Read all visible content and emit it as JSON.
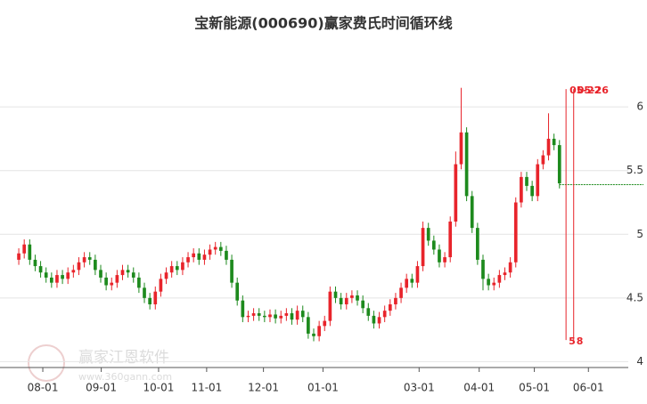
{
  "chart_data": {
    "type": "candlestick",
    "title": "宝新能源(000690)赢家费氏时间循环线",
    "watermark": "赢家江恩软件",
    "watermark_url": "www.360gann.com",
    "up_color": "#e8242b",
    "down_color": "#1d8a1d",
    "ylim": [
      3.94,
      6.56
    ],
    "yticks": [
      4,
      4.5,
      5,
      5.5,
      6
    ],
    "grid": true,
    "xlim": [
      -0.5,
      111.6
    ],
    "xticks": [
      {
        "value": 4.4,
        "label": "08-01"
      },
      {
        "value": 15.1,
        "label": "09-01"
      },
      {
        "value": 25.6,
        "label": "10-01"
      },
      {
        "value": 34.4,
        "label": "11-01"
      },
      {
        "value": 44.8,
        "label": "12-01"
      },
      {
        "value": 55.7,
        "label": "01-01"
      },
      {
        "value": 73.3,
        "label": "03-01"
      },
      {
        "value": 84.3,
        "label": "04-01"
      },
      {
        "value": 94.4,
        "label": "05-01"
      },
      {
        "value": 104.3,
        "label": "06-01"
      }
    ],
    "open": [
      4.8,
      4.85,
      4.92,
      4.8,
      4.75,
      4.7,
      4.66,
      4.62,
      4.68,
      4.65,
      4.7,
      4.72,
      4.78,
      4.82,
      4.8,
      4.72,
      4.66,
      4.6,
      4.62,
      4.68,
      4.72,
      4.7,
      4.66,
      4.58,
      4.5,
      4.45,
      4.55,
      4.65,
      4.7,
      4.75,
      4.72,
      4.78,
      4.82,
      4.85,
      4.8,
      4.84,
      4.88,
      4.9,
      4.87,
      4.8,
      4.62,
      4.48,
      4.35,
      4.36,
      4.38,
      4.36,
      4.35,
      4.37,
      4.34,
      4.36,
      4.38,
      4.33,
      4.4,
      4.35,
      4.22,
      4.2,
      4.28,
      4.32,
      4.55,
      4.5,
      4.45,
      4.5,
      4.52,
      4.48,
      4.42,
      4.36,
      4.3,
      4.35,
      4.4,
      4.45,
      4.5,
      4.58,
      4.65,
      4.62,
      4.75,
      5.05,
      4.95,
      4.88,
      4.78,
      4.82,
      5.1,
      5.55,
      5.8,
      5.3,
      5.05,
      4.8,
      4.65,
      4.6,
      4.62,
      4.68,
      4.7,
      4.78,
      5.25,
      5.45,
      5.38,
      5.3,
      5.55,
      5.62,
      5.75,
      5.7
    ],
    "close": [
      4.85,
      4.92,
      4.8,
      4.75,
      4.7,
      4.66,
      4.62,
      4.68,
      4.65,
      4.7,
      4.72,
      4.78,
      4.82,
      4.8,
      4.72,
      4.66,
      4.6,
      4.62,
      4.68,
      4.72,
      4.7,
      4.66,
      4.58,
      4.5,
      4.45,
      4.55,
      4.65,
      4.7,
      4.75,
      4.72,
      4.78,
      4.82,
      4.85,
      4.8,
      4.84,
      4.88,
      4.9,
      4.87,
      4.8,
      4.62,
      4.48,
      4.35,
      4.36,
      4.38,
      4.36,
      4.35,
      4.37,
      4.34,
      4.36,
      4.38,
      4.33,
      4.4,
      4.35,
      4.22,
      4.2,
      4.28,
      4.32,
      4.55,
      4.5,
      4.45,
      4.5,
      4.52,
      4.48,
      4.42,
      4.36,
      4.3,
      4.35,
      4.4,
      4.45,
      4.5,
      4.58,
      4.65,
      4.62,
      4.75,
      5.05,
      4.95,
      4.88,
      4.78,
      4.82,
      5.1,
      5.55,
      5.8,
      5.3,
      5.05,
      4.8,
      4.65,
      4.6,
      4.62,
      4.68,
      4.7,
      4.78,
      5.25,
      5.45,
      5.38,
      5.3,
      5.55,
      5.62,
      5.75,
      5.7,
      5.4
    ],
    "high": [
      4.89,
      4.96,
      4.96,
      4.84,
      4.79,
      4.74,
      4.7,
      4.72,
      4.72,
      4.74,
      4.76,
      4.82,
      4.86,
      4.86,
      4.84,
      4.76,
      4.7,
      4.66,
      4.72,
      4.76,
      4.76,
      4.74,
      4.7,
      4.62,
      4.54,
      4.59,
      4.69,
      4.74,
      4.79,
      4.79,
      4.82,
      4.86,
      4.89,
      4.89,
      4.88,
      4.92,
      4.94,
      4.94,
      4.91,
      4.84,
      4.66,
      4.52,
      4.4,
      4.42,
      4.42,
      4.4,
      4.41,
      4.41,
      4.4,
      4.42,
      4.42,
      4.44,
      4.44,
      4.39,
      4.26,
      4.32,
      4.36,
      4.59,
      4.59,
      4.54,
      4.54,
      4.56,
      4.56,
      4.52,
      4.46,
      4.4,
      4.39,
      4.44,
      4.49,
      4.54,
      4.62,
      4.69,
      4.69,
      4.79,
      5.1,
      5.09,
      4.99,
      4.92,
      4.86,
      5.14,
      5.65,
      6.15,
      5.84,
      5.34,
      5.09,
      4.84,
      4.69,
      4.66,
      4.72,
      4.74,
      4.82,
      5.29,
      5.49,
      5.49,
      5.42,
      5.59,
      5.66,
      5.95,
      5.79,
      5.74
    ],
    "low": [
      4.76,
      4.81,
      4.76,
      4.71,
      4.66,
      4.62,
      4.58,
      4.58,
      4.61,
      4.61,
      4.66,
      4.68,
      4.74,
      4.76,
      4.68,
      4.62,
      4.56,
      4.56,
      4.58,
      4.64,
      4.66,
      4.62,
      4.54,
      4.46,
      4.41,
      4.41,
      4.51,
      4.61,
      4.66,
      4.68,
      4.68,
      4.74,
      4.78,
      4.76,
      4.76,
      4.8,
      4.84,
      4.83,
      4.76,
      4.58,
      4.44,
      4.31,
      4.31,
      4.32,
      4.32,
      4.31,
      4.31,
      4.3,
      4.3,
      4.32,
      4.29,
      4.29,
      4.31,
      4.18,
      4.16,
      4.16,
      4.24,
      4.28,
      4.46,
      4.41,
      4.41,
      4.46,
      4.44,
      4.38,
      4.32,
      4.26,
      4.26,
      4.31,
      4.36,
      4.41,
      4.46,
      4.54,
      4.58,
      4.58,
      4.71,
      4.91,
      4.84,
      4.74,
      4.74,
      4.78,
      5.06,
      5.51,
      5.26,
      5.01,
      4.76,
      4.56,
      4.56,
      4.56,
      4.58,
      4.64,
      4.66,
      4.74,
      5.21,
      5.34,
      5.26,
      5.26,
      5.51,
      5.58,
      5.66,
      5.36
    ],
    "cycle_color": "#e8242b",
    "cycle_lines": [
      {
        "x": 100.2,
        "top_label": "05-22",
        "bottom_label": "5"
      },
      {
        "x": 101.6,
        "top_label": "05-26",
        "bottom_label": "8"
      }
    ],
    "cycle_range": [
      4.17,
      6.14
    ],
    "level": 5.39
  }
}
